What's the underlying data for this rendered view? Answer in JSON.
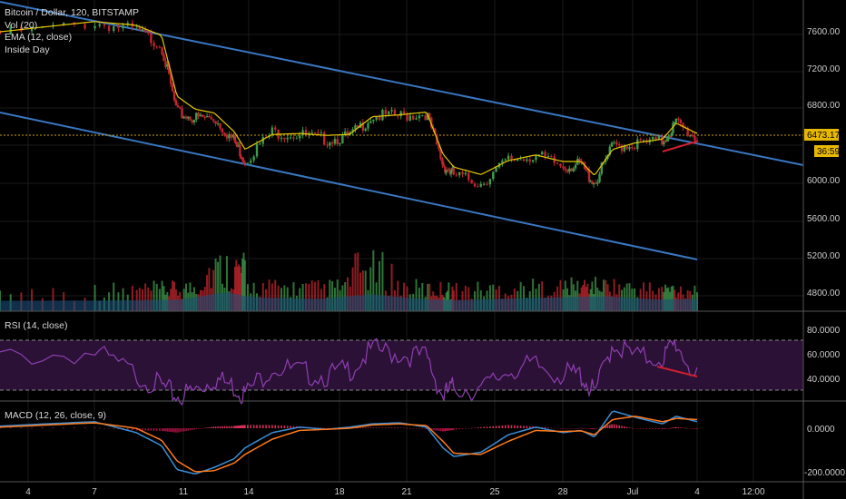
{
  "colors": {
    "background": "#000000",
    "up_candle": "#3f9a4c",
    "down_candle": "#c0262e",
    "ema_line": "#e6c800",
    "channel_line": "#3a76c0",
    "divergence_line": "#d0202e",
    "rsi_line": "#8e3fb0",
    "rsi_band": "#2b1136",
    "macd_line": "#3a8fd9",
    "signal_line": "#ff7a1a",
    "price_line": "#d4a300",
    "axis_text": "#cccccc",
    "grid": "#1a1a1a",
    "volume_area": "#1d4f78"
  },
  "price_pane": {
    "legend": [
      "Bitcoin / Dollar, 120, BITSTAMP",
      "Vol (20)",
      "EMA (12, close)",
      "Inside Day"
    ],
    "y_ticks": [
      "7600.00",
      "7200.00",
      "6800.00",
      "6400.00",
      "6000.00",
      "5600.00",
      "5200.00",
      "4800.00"
    ],
    "last_price": "6473.17",
    "timer": "36:59"
  },
  "rsi_pane": {
    "legend": "RSI (14, close)",
    "y_ticks": [
      "80.0000",
      "60.0000",
      "40.0000"
    ]
  },
  "macd_pane": {
    "legend": "MACD (12, 26, close, 9)",
    "y_ticks": [
      "0.0000",
      "-200.0000"
    ]
  },
  "x_ticks": [
    "4",
    "7",
    "11",
    "14",
    "18",
    "21",
    "25",
    "28",
    "Jul",
    "4",
    "12:00"
  ],
  "chart_data": [
    {
      "type": "line",
      "title": "Bitcoin / Dollar, 120, BITSTAMP",
      "x_ticks": [
        "4",
        "7",
        "11",
        "14",
        "18",
        "21",
        "25",
        "28",
        "Jul",
        "4",
        "12:00"
      ],
      "y_ticks": [
        7600,
        7200,
        6800,
        6400,
        6000,
        5600,
        5200,
        4800
      ],
      "ylim": [
        4600,
        7900
      ],
      "series": [
        {
          "name": "Bitcoin / Dollar",
          "x": [
            "4",
            "7",
            "9",
            "10",
            "11",
            "11.5",
            "12",
            "13",
            "14",
            "15",
            "16",
            "17",
            "18",
            "19",
            "20",
            "21",
            "22",
            "23",
            "24",
            "25",
            "26",
            "27",
            "28",
            "29",
            "30",
            "Jul",
            "Jul 2",
            "Jul 3",
            "Jul 4"
          ],
          "values": [
            7600,
            7720,
            7640,
            7480,
            6750,
            6700,
            6700,
            6450,
            6250,
            6550,
            6520,
            6470,
            6500,
            6720,
            6720,
            6750,
            6200,
            6090,
            6000,
            6250,
            6300,
            6180,
            6200,
            6000,
            6400,
            6420,
            6450,
            6650,
            6473
          ]
        },
        {
          "name": "EMA (12, close)",
          "x": [
            "4",
            "7",
            "9",
            "10",
            "11",
            "11.5",
            "12",
            "13",
            "14",
            "15",
            "16",
            "17",
            "18",
            "19",
            "20",
            "21",
            "22",
            "23",
            "24",
            "25",
            "26",
            "27",
            "28",
            "29",
            "30",
            "Jul",
            "Jul 2",
            "Jul 3",
            "Jul 4"
          ],
          "values": [
            7590,
            7700,
            7660,
            7550,
            6900,
            6760,
            6720,
            6520,
            6330,
            6490,
            6500,
            6480,
            6490,
            6680,
            6700,
            6730,
            6280,
            6140,
            6060,
            6210,
            6270,
            6200,
            6200,
            6050,
            6330,
            6400,
            6440,
            6610,
            6500
          ]
        }
      ],
      "annotations": [
        {
          "text": "6473.17"
        },
        {
          "text": "36:59"
        }
      ]
    },
    {
      "type": "bar",
      "title": "Vol (20)",
      "ylim": [
        0,
        1
      ],
      "values": [
        0.25,
        0.3,
        0.35,
        0.9,
        0.5,
        0.4,
        0.75,
        0.35,
        0.3,
        0.45,
        0.55,
        0.6,
        0.35,
        0.4
      ]
    },
    {
      "type": "line",
      "title": "RSI (14, close)",
      "y_ticks": [
        80,
        60,
        40
      ],
      "ylim": [
        25,
        85
      ],
      "series": [
        {
          "name": "RSI (14, close)",
          "x": [
            "4",
            "7",
            "9",
            "10",
            "11",
            "11.5",
            "12",
            "13",
            "14",
            "15",
            "16",
            "17",
            "18",
            "19",
            "20",
            "21",
            "22",
            "23",
            "24",
            "25",
            "26",
            "27",
            "28",
            "29",
            "30",
            "Jul",
            "Jul 2",
            "Jul 3",
            "Jul 4"
          ],
          "values": [
            62,
            66,
            48,
            38,
            30,
            35,
            45,
            38,
            32,
            55,
            50,
            47,
            52,
            68,
            65,
            62,
            30,
            38,
            35,
            52,
            55,
            48,
            48,
            32,
            74,
            62,
            62,
            74,
            44
          ]
        }
      ]
    },
    {
      "type": "line",
      "title": "MACD (12, 26, close, 9)",
      "y_ticks": [
        0,
        -200
      ],
      "ylim": [
        -240,
        100
      ],
      "series": [
        {
          "name": "MACD",
          "x": [
            "4",
            "7",
            "9",
            "10",
            "11",
            "11.5",
            "12",
            "13",
            "14",
            "15",
            "16",
            "17",
            "18",
            "19",
            "20",
            "21",
            "22",
            "23",
            "24",
            "25",
            "26",
            "27",
            "28",
            "29",
            "30",
            "Jul",
            "Jul 2",
            "Jul 3",
            "Jul 4"
          ],
          "values": [
            10,
            30,
            -20,
            -80,
            -190,
            -210,
            -180,
            -140,
            -90,
            -20,
            5,
            -5,
            5,
            20,
            25,
            5,
            -90,
            -130,
            -110,
            -30,
            5,
            -20,
            -10,
            -40,
            80,
            50,
            20,
            55,
            30
          ]
        },
        {
          "name": "Signal",
          "x": [
            "4",
            "7",
            "9",
            "10",
            "11",
            "11.5",
            "12",
            "13",
            "14",
            "15",
            "16",
            "17",
            "18",
            "19",
            "20",
            "21",
            "22",
            "23",
            "24",
            "25",
            "26",
            "27",
            "28",
            "29",
            "30",
            "Jul",
            "Jul 2",
            "Jul 3",
            "Jul 4"
          ],
          "values": [
            5,
            25,
            0,
            -55,
            -150,
            -200,
            -195,
            -160,
            -120,
            -50,
            -10,
            -5,
            0,
            15,
            20,
            12,
            -60,
            -115,
            -120,
            -60,
            -10,
            -15,
            -12,
            -30,
            40,
            55,
            30,
            45,
            40
          ]
        }
      ]
    }
  ]
}
